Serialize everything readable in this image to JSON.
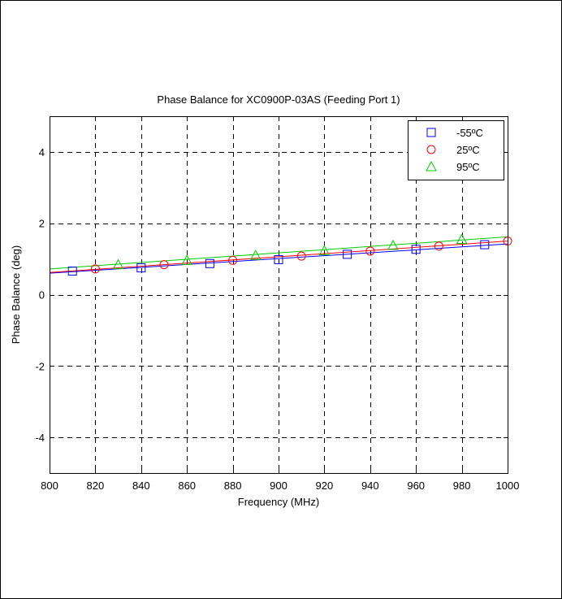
{
  "chart_data": {
    "type": "line",
    "title": "Phase Balance for XC0900P-03AS (Feeding Port 1)",
    "xlabel": "Frequency (MHz)",
    "ylabel": "Phase Balance (deg)",
    "xlim": [
      800,
      1000
    ],
    "ylim": [
      -5,
      5
    ],
    "xticks": [
      800,
      820,
      840,
      860,
      880,
      900,
      920,
      940,
      960,
      980,
      1000
    ],
    "yticks": [
      -4,
      -2,
      0,
      2,
      4
    ],
    "grid": true,
    "legend_position": "top-right",
    "series": [
      {
        "name": "-55ºC",
        "color": "#0000ff",
        "marker": "square",
        "line": {
          "x": [
            800,
            1000
          ],
          "y": [
            0.6,
            1.42
          ]
        },
        "markers": {
          "x": [
            810,
            840,
            870,
            900,
            930,
            960,
            990
          ],
          "y": [
            0.66,
            0.75,
            0.87,
            0.98,
            1.13,
            1.27,
            1.4
          ]
        }
      },
      {
        "name": "25ºC",
        "color": "#ff0000",
        "marker": "circle",
        "line": {
          "x": [
            800,
            1000
          ],
          "y": [
            0.62,
            1.5
          ]
        },
        "markers": {
          "x": [
            820,
            850,
            880,
            910,
            940,
            970,
            1000
          ],
          "y": [
            0.72,
            0.84,
            0.96,
            1.08,
            1.22,
            1.36,
            1.5
          ]
        }
      },
      {
        "name": "95ºC",
        "color": "#00cc00",
        "marker": "triangle",
        "line": {
          "x": [
            800,
            1000
          ],
          "y": [
            0.72,
            1.62
          ]
        },
        "markers": {
          "x": [
            830,
            860,
            890,
            920,
            950,
            980
          ],
          "y": [
            0.84,
            0.96,
            1.1,
            1.23,
            1.38,
            1.55
          ]
        }
      }
    ]
  }
}
